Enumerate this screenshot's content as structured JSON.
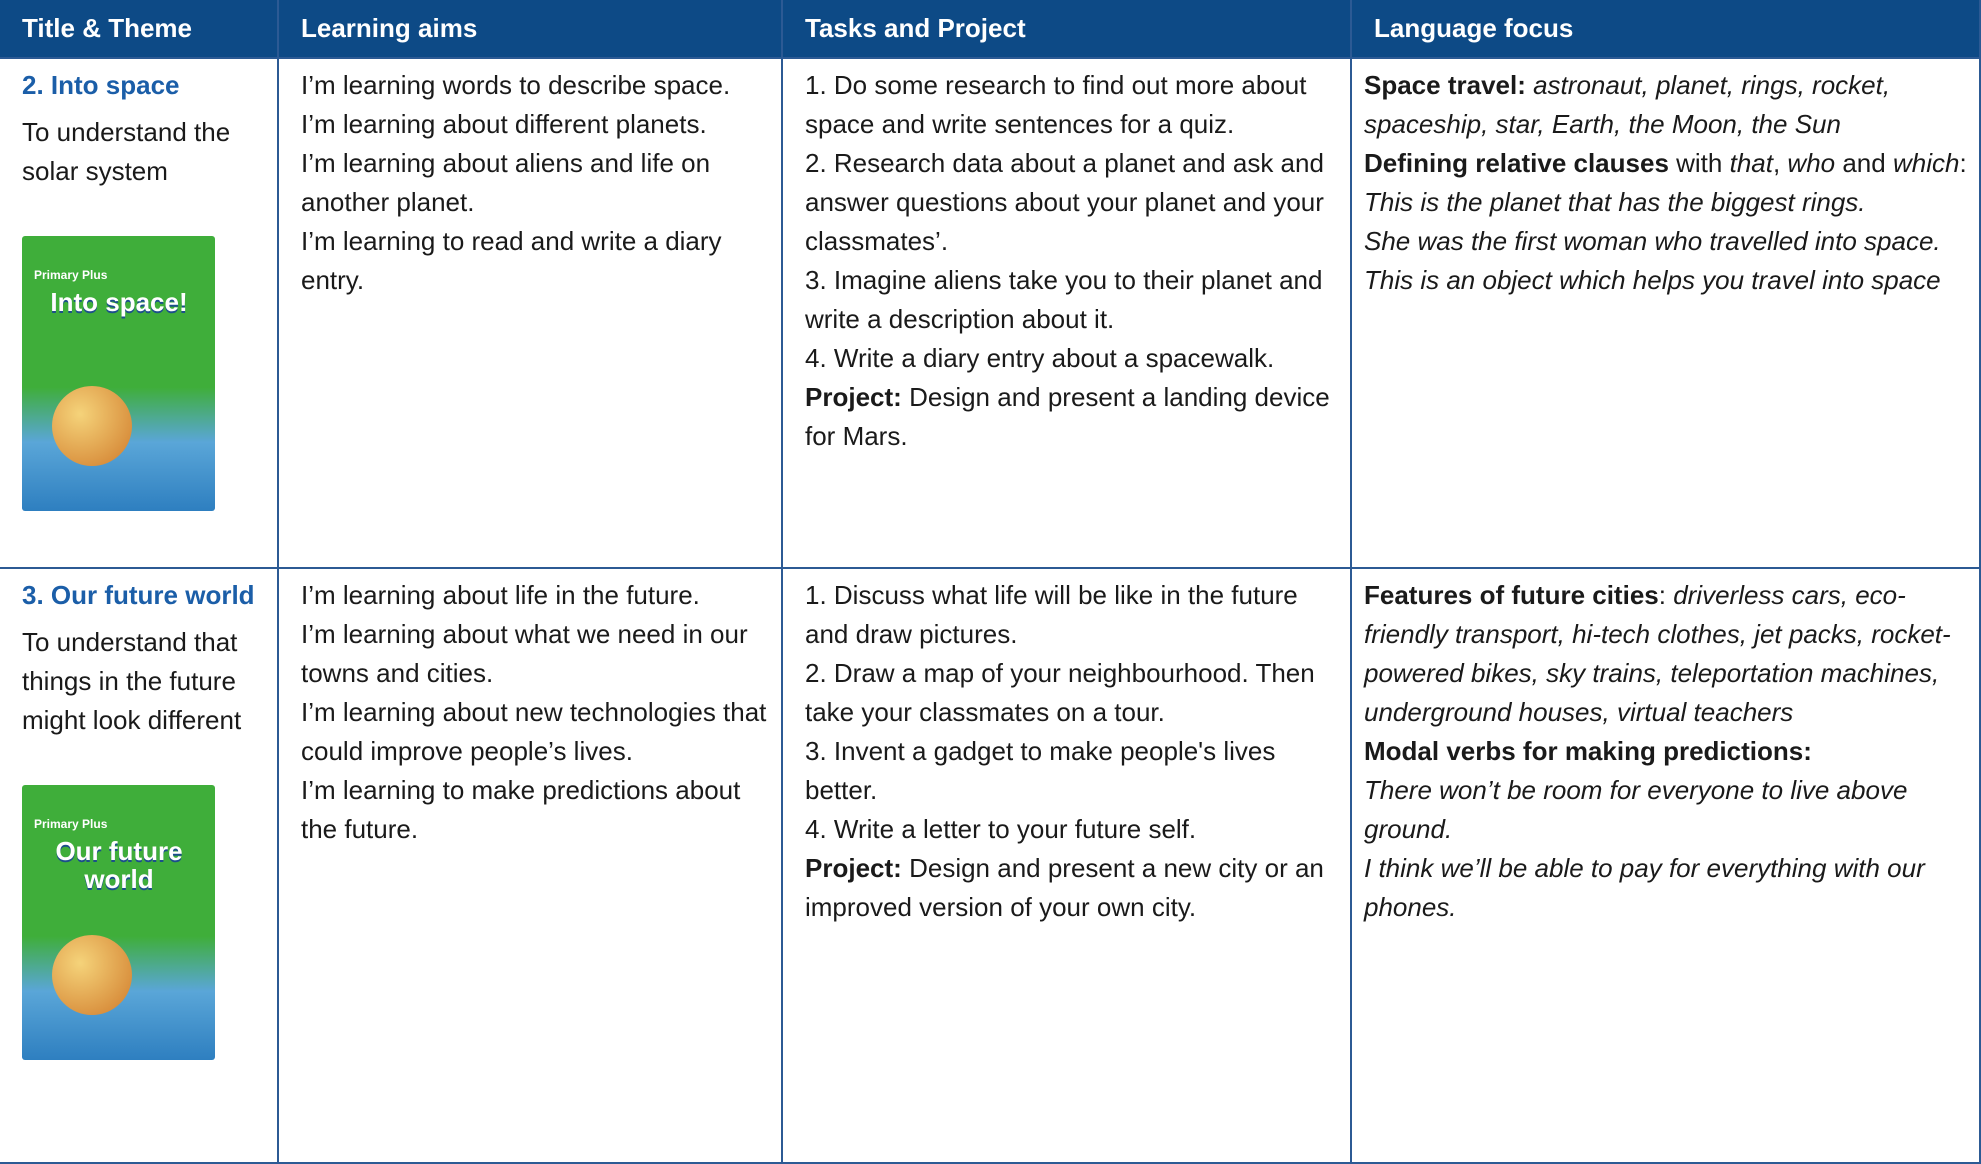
{
  "table": {
    "headers": [
      "Title & Theme",
      "Learning aims",
      "Tasks and Project",
      "Language focus"
    ],
    "rows": [
      {
        "title": "2. Into space",
        "theme": "To understand the solar system",
        "cover": {
          "brand": "Primary Plus",
          "title": "Into space!"
        },
        "aims": [
          "I’m learning words to describe space.",
          "I’m learning about different planets.",
          "I’m learning about aliens and life on another planet.",
          "I’m learning to read and write a diary entry."
        ],
        "tasks": [
          "1. Do some research to find out more about space and write sentences for a quiz.",
          "2. Research data about a planet and ask and answer questions about your planet and your classmates’.",
          "3. Imagine aliens take you to their planet and write a description about it.",
          "4. Write a diary entry about a spacewalk."
        ],
        "project": {
          "label": "Project:",
          "text": "Design and present a landing device for Mars."
        },
        "language": [
          [
            {
              "text": "Space travel:",
              "style": "bold"
            },
            {
              "text": " astronaut, planet, rings, rocket, spaceship, star, Earth, the Moon, the Sun",
              "style": "italic"
            }
          ],
          [
            {
              "text": "Defining relative clauses",
              "style": "bold"
            },
            {
              "text": " with ",
              "style": "normal"
            },
            {
              "text": "that",
              "style": "italic"
            },
            {
              "text": ", ",
              "style": "normal"
            },
            {
              "text": "who",
              "style": "italic"
            },
            {
              "text": " and ",
              "style": "normal"
            },
            {
              "text": "which",
              "style": "italic"
            },
            {
              "text": ":",
              "style": "normal"
            }
          ],
          [
            {
              "text": "This is the planet that has the biggest rings.",
              "style": "italic"
            }
          ],
          [
            {
              "text": "She was the first woman who travelled into space.",
              "style": "italic"
            }
          ],
          [
            {
              "text": "This is an object which helps you travel into space",
              "style": "italic"
            }
          ]
        ]
      },
      {
        "title": "3. Our future world",
        "theme": "To understand that things in the future might look different",
        "cover": {
          "brand": "Primary Plus",
          "title": "Our future world"
        },
        "aims": [
          "I’m learning about life in the future.",
          "I’m learning about what we need in our towns and cities.",
          "I’m learning about new technologies that could improve people’s lives.",
          "I’m learning to make predictions about the future."
        ],
        "tasks": [
          "1. Discuss what life will be like in the future and draw pictures.",
          "2. Draw a map of your neighbourhood. Then take your classmates on a tour.",
          "3. Invent a gadget to make people's lives better.",
          "4. Write a letter to your future self."
        ],
        "project": {
          "label": "Project:",
          "text": "Design and present a new city or an improved version of your own city."
        },
        "language": [
          [
            {
              "text": "Features of future cities",
              "style": "bold"
            },
            {
              "text": ": ",
              "style": "normal"
            },
            {
              "text": "driverless cars, eco-friendly transport, hi-tech clothes, jet packs, rocket-powered bikes, sky trains, teleportation machines, underground houses, virtual teachers",
              "style": "italic"
            }
          ],
          [
            {
              "text": "Modal verbs for making predictions:",
              "style": "bold"
            }
          ],
          [
            {
              "text": "There won’t be room for everyone to live above ground.",
              "style": "italic"
            }
          ],
          [
            {
              "text": "I think we’ll be able to pay for everything with our phones.",
              "style": "italic"
            }
          ]
        ]
      }
    ]
  }
}
